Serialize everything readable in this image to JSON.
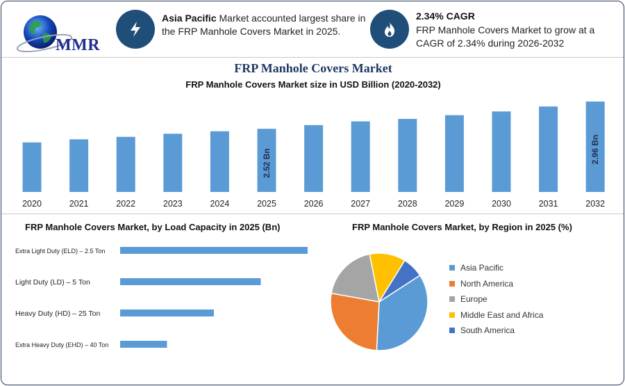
{
  "logo": {
    "text": "MMR"
  },
  "header": {
    "left": {
      "bold": "Asia Pacific",
      "text": " Market accounted largest share in the FRP Manhole Covers Market in 2025."
    },
    "right": {
      "title": "2.34% CAGR",
      "text": "FRP Manhole Covers Market to grow at a CAGR of 2.34% during 2026-2032"
    }
  },
  "colors": {
    "bar": "#5b9bd5",
    "navy": "#1f4e79"
  },
  "chart_data": [
    {
      "type": "bar",
      "title": "FRP Manhole Covers Market",
      "subtitle": "FRP Manhole Covers Market size in USD Billion (2020-2032)",
      "categories": [
        "2020",
        "2021",
        "2022",
        "2023",
        "2024",
        "2025",
        "2026",
        "2027",
        "2028",
        "2029",
        "2030",
        "2031",
        "2032"
      ],
      "values": [
        2.3,
        2.35,
        2.39,
        2.44,
        2.48,
        2.52,
        2.58,
        2.64,
        2.68,
        2.74,
        2.8,
        2.88,
        2.96
      ],
      "data_labels": {
        "5": "2.52 Bn",
        "12": "2.96 Bn"
      }
    },
    {
      "type": "bar",
      "orientation": "horizontal",
      "title": "FRP Manhole Covers Market, by Load Capacity in 2025 (Bn)",
      "categories": [
        "Extra Light Duty (ELD) – 2.5 Ton",
        "Light Duty (LD) – 5 Ton",
        "Heavy Duty (HD) – 25 Ton",
        "Extra Heavy Duty (EHD) – 40 Ton"
      ],
      "values": [
        1.0,
        0.75,
        0.5,
        0.25
      ]
    },
    {
      "type": "pie",
      "title": "FRP Manhole Covers Market, by Region in 2025 (%)",
      "categories": [
        "Asia Pacific",
        "North America",
        "Europe",
        "Middle East and Africa",
        "South America"
      ],
      "values": [
        35,
        27,
        19,
        12,
        7
      ],
      "colors": [
        "#5b9bd5",
        "#ed7d31",
        "#a5a5a5",
        "#ffc000",
        "#4472c4"
      ],
      "legend": "right"
    }
  ]
}
